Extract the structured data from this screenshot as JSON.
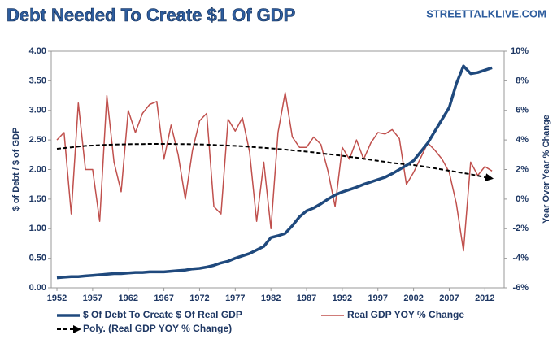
{
  "chart_data": {
    "type": "line",
    "title": "Debt Needed To Create $1 Of GDP",
    "source": "STREETTALKLIVE.COM",
    "y_label": "$ of Debt / $ of GDP",
    "y2_label": "Year Over Year % Change",
    "x": [
      1952,
      1953,
      1954,
      1955,
      1956,
      1957,
      1958,
      1959,
      1960,
      1961,
      1962,
      1963,
      1964,
      1965,
      1966,
      1967,
      1968,
      1969,
      1970,
      1971,
      1972,
      1973,
      1974,
      1975,
      1976,
      1977,
      1978,
      1979,
      1980,
      1981,
      1982,
      1983,
      1984,
      1985,
      1986,
      1987,
      1988,
      1989,
      1990,
      1991,
      1992,
      1993,
      1994,
      1995,
      1996,
      1997,
      1998,
      1999,
      2000,
      2001,
      2002,
      2003,
      2004,
      2005,
      2006,
      2007,
      2008,
      2009,
      2010,
      2011,
      2012,
      2013
    ],
    "xlim": [
      1951.2,
      2014.7
    ],
    "xticks": [
      1952,
      1957,
      1962,
      1967,
      1972,
      1977,
      1982,
      1987,
      1992,
      1997,
      2002,
      2007,
      2012
    ],
    "ylim": [
      0,
      4
    ],
    "yticks": [
      {
        "value": 0,
        "label": "0.00"
      },
      {
        "value": 0.5,
        "label": "0.50"
      },
      {
        "value": 1,
        "label": "1.00"
      },
      {
        "value": 1.5,
        "label": "1.50"
      },
      {
        "value": 2,
        "label": "2.00"
      },
      {
        "value": 2.5,
        "label": "2.50"
      },
      {
        "value": 3,
        "label": "3.00"
      },
      {
        "value": 3.5,
        "label": "3.50"
      },
      {
        "value": 4,
        "label": "4.00"
      }
    ],
    "y2lim": [
      -6,
      10
    ],
    "y2ticks": [
      {
        "value": -6,
        "label": "-6%"
      },
      {
        "value": -4,
        "label": "-4%"
      },
      {
        "value": -2,
        "label": "-2%"
      },
      {
        "value": 0,
        "label": "0%"
      },
      {
        "value": 2,
        "label": "2%"
      },
      {
        "value": 4,
        "label": "4%"
      },
      {
        "value": 6,
        "label": "6%"
      },
      {
        "value": 8,
        "label": "8%"
      },
      {
        "value": 10,
        "label": "10%"
      }
    ],
    "series": [
      {
        "name": "$ Of Debt To Create $ Of Real GDP",
        "color": "#1f497d",
        "axis": "y",
        "width": 3.5,
        "values": [
          0.17,
          0.18,
          0.19,
          0.19,
          0.2,
          0.21,
          0.22,
          0.23,
          0.24,
          0.24,
          0.25,
          0.26,
          0.26,
          0.27,
          0.27,
          0.27,
          0.28,
          0.29,
          0.3,
          0.32,
          0.33,
          0.35,
          0.38,
          0.42,
          0.45,
          0.5,
          0.54,
          0.58,
          0.64,
          0.7,
          0.85,
          0.88,
          0.92,
          1.05,
          1.2,
          1.3,
          1.35,
          1.42,
          1.5,
          1.57,
          1.62,
          1.66,
          1.7,
          1.75,
          1.79,
          1.83,
          1.87,
          1.93,
          2.0,
          2.07,
          2.15,
          2.3,
          2.45,
          2.65,
          2.85,
          3.05,
          3.45,
          3.75,
          3.62,
          3.64,
          3.68,
          3.72
        ]
      },
      {
        "name": "Real GDP YOY % Change",
        "color": "#c0504d",
        "axis": "y2",
        "width": 1.5,
        "values": [
          4,
          4.5,
          -1,
          6.5,
          2,
          2,
          -1.5,
          7,
          2.5,
          0.5,
          6,
          4.5,
          5.8,
          6.4,
          6.6,
          2.7,
          5,
          3,
          0,
          3.3,
          5.3,
          5.8,
          -0.5,
          -1,
          5.4,
          4.6,
          5.5,
          3.2,
          -1.5,
          2.5,
          -2,
          4.5,
          7.2,
          4.2,
          3.5,
          3.5,
          4.2,
          3.7,
          1.9,
          -0.5,
          3.5,
          2.7,
          4,
          2.7,
          3.8,
          4.5,
          4.4,
          4.7,
          4.1,
          1,
          1.8,
          2.8,
          3.8,
          3.3,
          2.7,
          1.8,
          -0.3,
          -3.5,
          2.5,
          1.6,
          2.2,
          1.9
        ]
      },
      {
        "name": "Poly. (Real GDP YOY % Change)",
        "color": "#000000",
        "axis": "y2",
        "width": 2,
        "dash": true,
        "values": [
          3.4,
          3.45,
          3.5,
          3.55,
          3.6,
          3.62,
          3.65,
          3.67,
          3.69,
          3.7,
          3.71,
          3.72,
          3.72,
          3.73,
          3.73,
          3.73,
          3.73,
          3.72,
          3.72,
          3.71,
          3.7,
          3.68,
          3.66,
          3.64,
          3.62,
          3.6,
          3.57,
          3.54,
          3.5,
          3.47,
          3.43,
          3.39,
          3.35,
          3.3,
          3.26,
          3.21,
          3.16,
          3.1,
          3.04,
          2.99,
          2.93,
          2.86,
          2.8,
          2.73,
          2.66,
          2.59,
          2.52,
          2.44,
          2.4,
          2.35,
          2.3,
          2.23,
          2.16,
          2.08,
          2.0,
          1.92,
          1.84,
          1.76,
          1.68,
          1.58,
          1.48,
          1.4
        ]
      }
    ]
  }
}
